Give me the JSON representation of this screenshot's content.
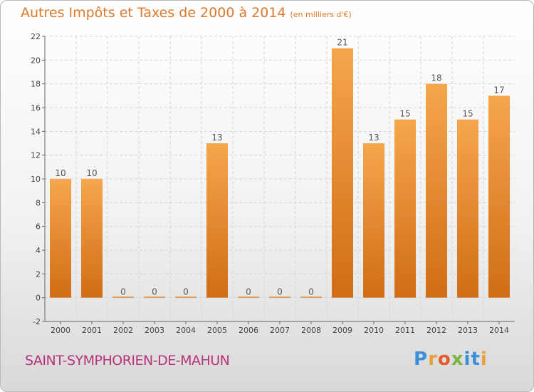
{
  "header": {
    "title": "Autres Impôts et Taxes de 2000 à 2014",
    "unit": "(en milliers d'€)"
  },
  "footer": {
    "town": "SAINT-SYMPHORIEN-DE-MAHUN",
    "logo": "Proxiti"
  },
  "colors": {
    "bar_light": "#f6a64c",
    "bar_dark": "#d06d16",
    "title": "#e0782a",
    "town": "#b8347a"
  },
  "chart_data": {
    "type": "bar",
    "categories": [
      "2000",
      "2001",
      "2002",
      "2003",
      "2004",
      "2005",
      "2006",
      "2007",
      "2008",
      "2009",
      "2010",
      "2011",
      "2012",
      "2013",
      "2014"
    ],
    "values": [
      10,
      10,
      0,
      0,
      0,
      13,
      0,
      0,
      0,
      21,
      13,
      15,
      18,
      15,
      17
    ],
    "value_labels": [
      "10",
      "10",
      "0",
      "0",
      "0",
      "13",
      "0",
      "0",
      "0",
      "21",
      "13",
      "15",
      "18",
      "15",
      "17"
    ],
    "ylim": [
      -2,
      22
    ],
    "yticks": [
      -2,
      0,
      2,
      4,
      6,
      8,
      10,
      12,
      14,
      16,
      18,
      20,
      22
    ],
    "grid": true,
    "legend": "none"
  }
}
